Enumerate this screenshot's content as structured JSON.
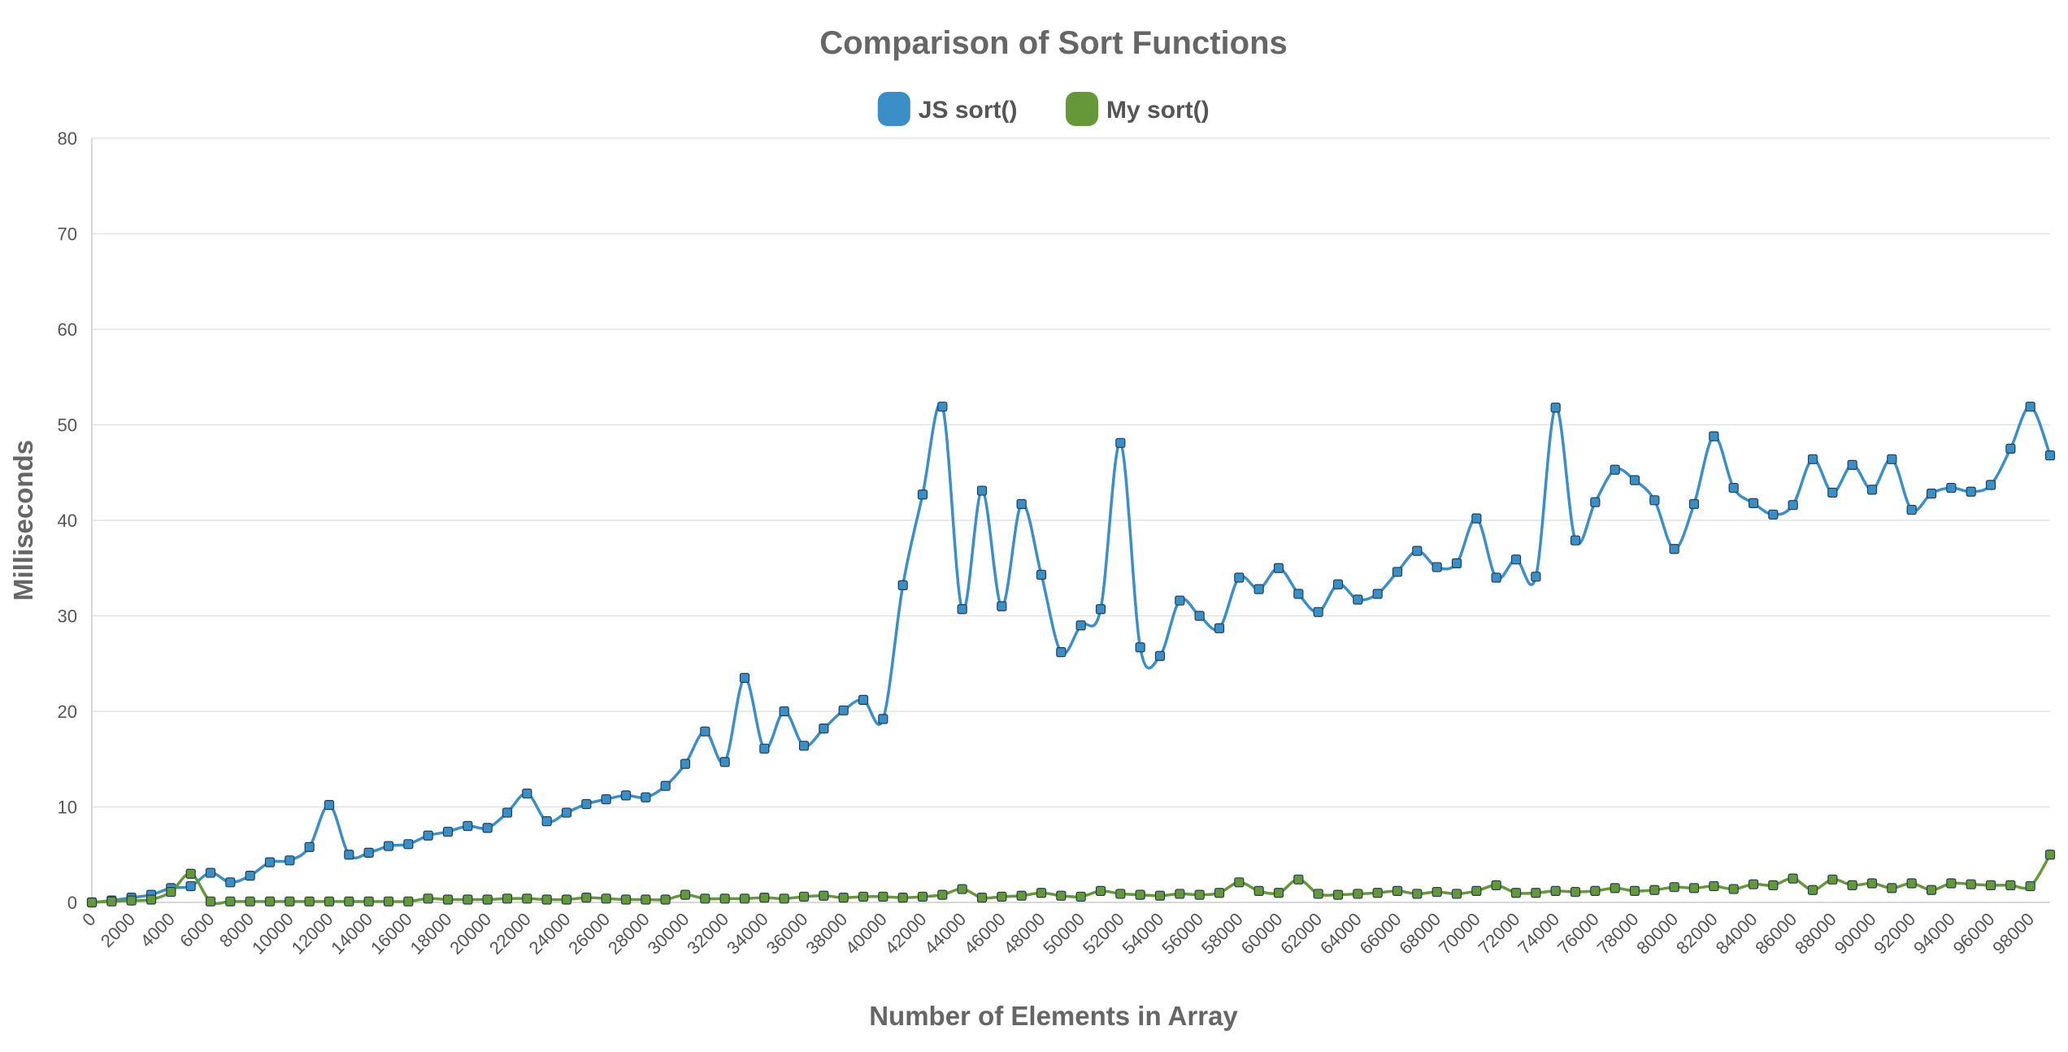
{
  "chart_data": {
    "type": "line",
    "title": "Comparison of Sort Functions",
    "xlabel": "Number of Elements in Array",
    "ylabel": "Milliseconds",
    "ylim": [
      0,
      80
    ],
    "yticks": [
      0,
      10,
      20,
      30,
      40,
      50,
      60,
      70,
      80
    ],
    "xlim": [
      0,
      99000
    ],
    "xticks": [
      0,
      2000,
      4000,
      6000,
      8000,
      10000,
      12000,
      14000,
      16000,
      18000,
      20000,
      22000,
      24000,
      26000,
      28000,
      30000,
      32000,
      34000,
      36000,
      38000,
      40000,
      42000,
      44000,
      46000,
      48000,
      50000,
      52000,
      54000,
      56000,
      58000,
      60000,
      62000,
      64000,
      66000,
      68000,
      70000,
      72000,
      74000,
      76000,
      78000,
      80000,
      82000,
      84000,
      86000,
      88000,
      90000,
      92000,
      94000,
      96000,
      98000
    ],
    "x_step": 1000,
    "grid": true,
    "legend": "top-center",
    "series": [
      {
        "name": "JS sort()",
        "color": "#3a8fc7",
        "values": [
          0,
          0.2,
          0.5,
          0.8,
          1.5,
          1.7,
          3.1,
          2.1,
          2.8,
          4.2,
          4.4,
          5.8,
          10.2,
          5.0,
          5.2,
          5.9,
          6.1,
          7.0,
          7.4,
          8.0,
          7.8,
          9.4,
          11.4,
          8.5,
          9.4,
          10.3,
          10.8,
          11.2,
          11.0,
          12.2,
          14.5,
          17.9,
          14.7,
          23.5,
          16.1,
          20.0,
          16.4,
          18.2,
          20.1,
          21.2,
          19.2,
          33.2,
          42.7,
          51.9,
          30.7,
          43.1,
          31.0,
          41.7,
          34.3,
          26.2,
          29.0,
          30.7,
          48.1,
          26.7,
          25.8,
          31.6,
          30.0,
          28.7,
          34.0,
          32.8,
          35.0,
          32.3,
          30.4,
          33.3,
          31.7,
          32.3,
          34.6,
          36.8,
          35.1,
          35.5,
          40.2,
          34.0,
          35.9,
          34.1,
          51.8,
          37.9,
          41.9,
          45.3,
          44.2,
          42.1,
          37.0,
          41.7,
          48.8,
          43.4,
          41.8,
          40.6,
          41.6,
          46.4,
          42.9,
          45.8,
          43.2,
          46.4,
          41.1,
          42.8,
          43.4,
          43.0,
          43.7,
          47.5,
          51.9,
          46.8
        ]
      },
      {
        "name": "My sort()",
        "color": "#66983a",
        "values": [
          0,
          0.1,
          0.2,
          0.3,
          1.1,
          3.0,
          0.1,
          0.1,
          0.1,
          0.1,
          0.1,
          0.1,
          0.1,
          0.1,
          0.1,
          0.1,
          0.1,
          0.4,
          0.3,
          0.3,
          0.3,
          0.4,
          0.4,
          0.3,
          0.3,
          0.5,
          0.4,
          0.3,
          0.3,
          0.3,
          0.8,
          0.4,
          0.4,
          0.4,
          0.5,
          0.4,
          0.6,
          0.7,
          0.5,
          0.6,
          0.6,
          0.5,
          0.6,
          0.8,
          1.4,
          0.5,
          0.6,
          0.7,
          1.0,
          0.7,
          0.6,
          1.2,
          0.9,
          0.8,
          0.7,
          0.9,
          0.8,
          1.0,
          2.1,
          1.2,
          1.0,
          2.4,
          0.9,
          0.8,
          0.9,
          1.0,
          1.2,
          0.9,
          1.1,
          0.9,
          1.2,
          1.8,
          1.0,
          1.0,
          1.2,
          1.1,
          1.2,
          1.5,
          1.2,
          1.3,
          1.6,
          1.5,
          1.7,
          1.4,
          1.9,
          1.8,
          2.5,
          1.3,
          2.4,
          1.8,
          2.0,
          1.5,
          2.0,
          1.3,
          2.0,
          1.9,
          1.8,
          1.8,
          1.7,
          5.0
        ]
      }
    ]
  }
}
